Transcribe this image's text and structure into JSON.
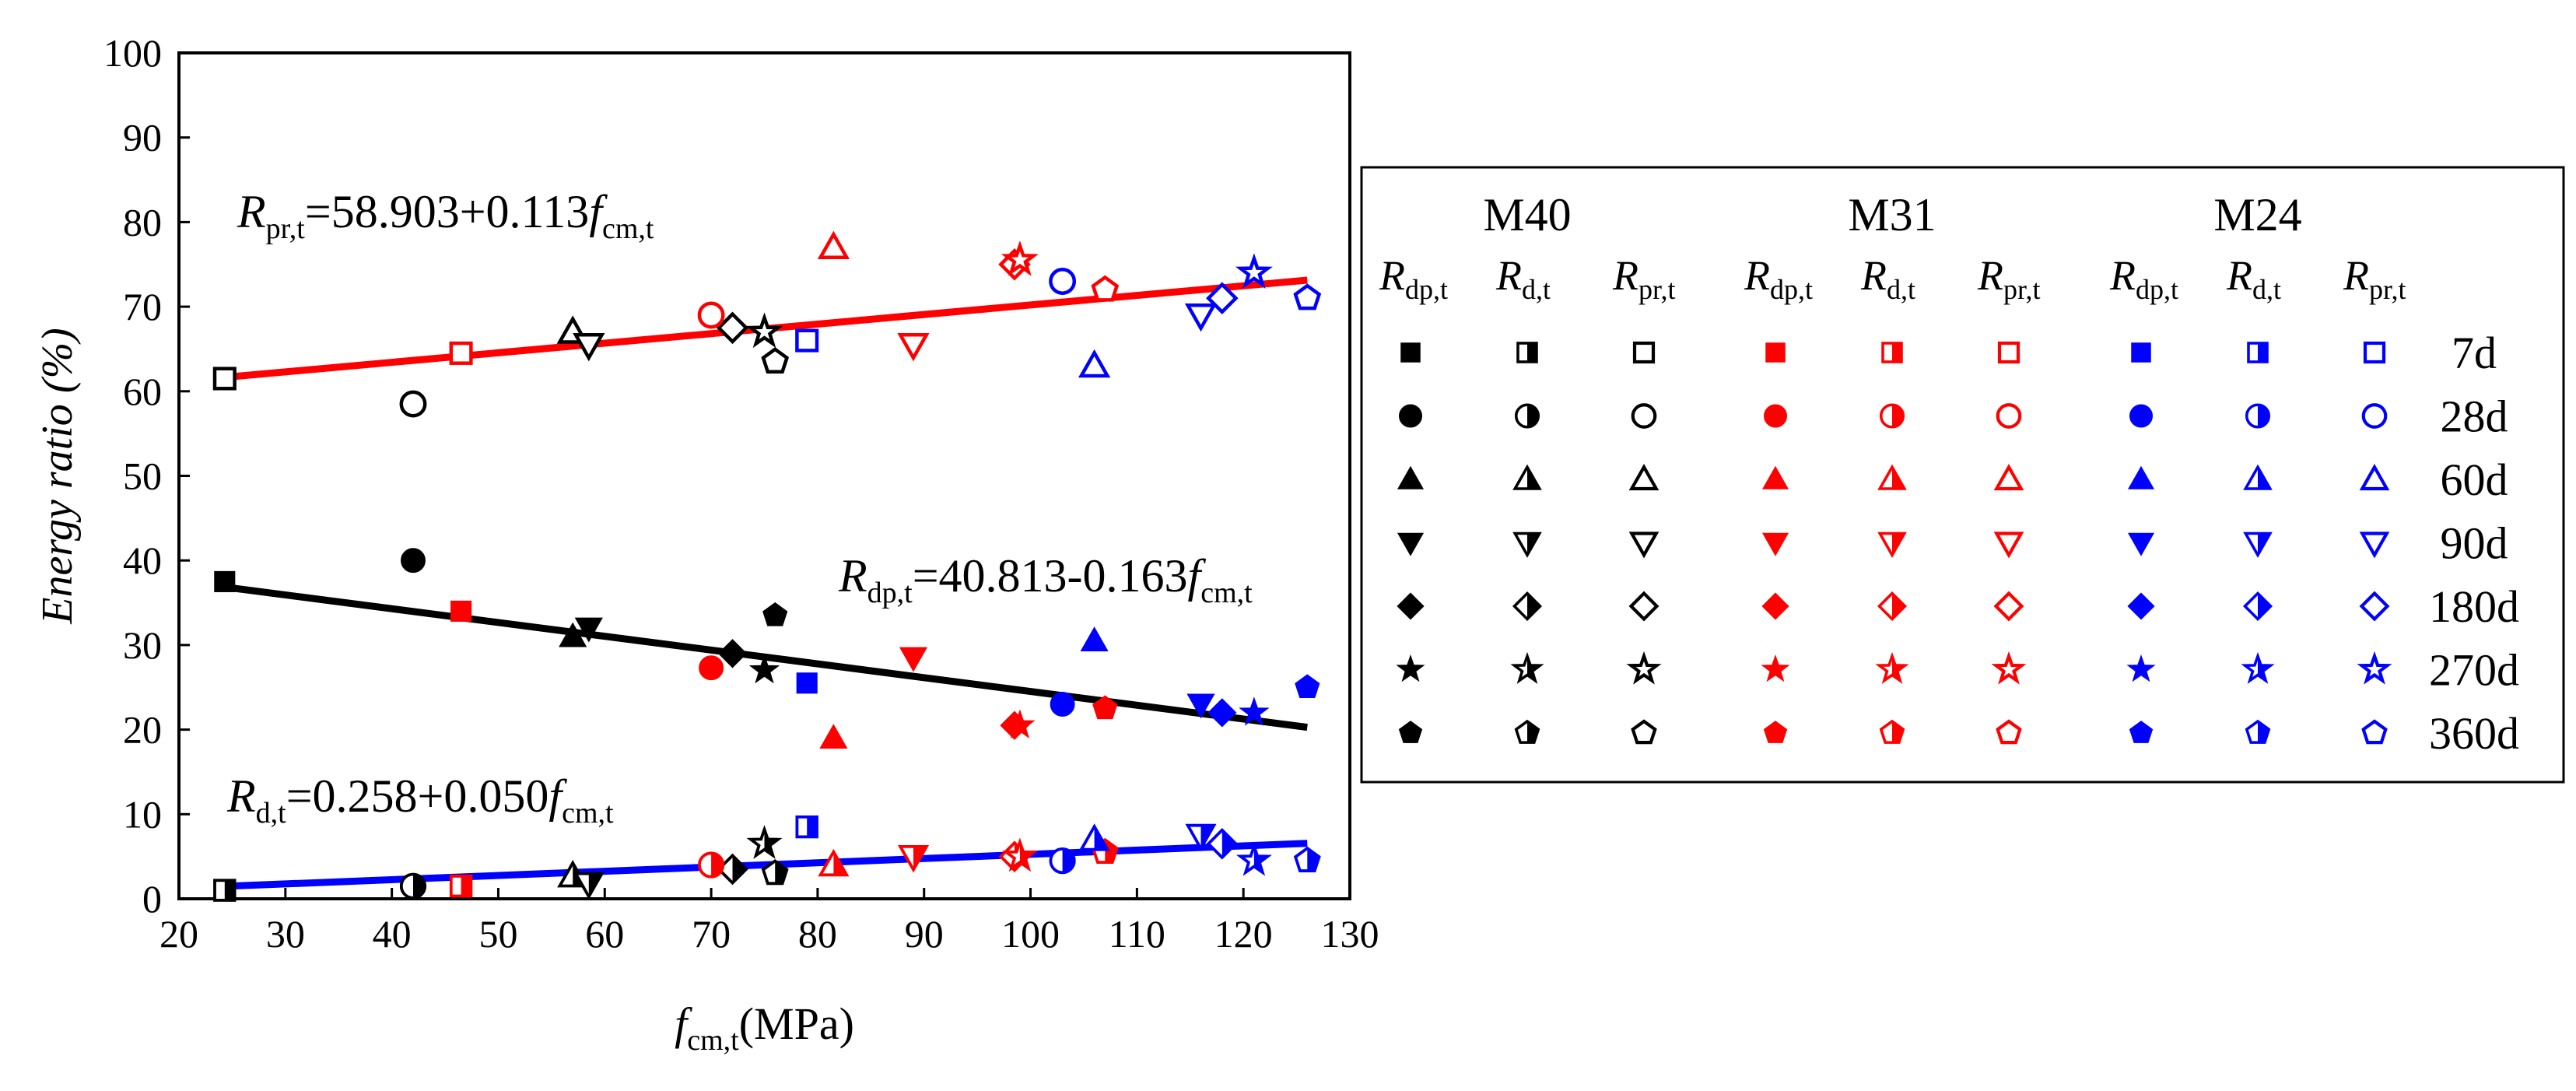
{
  "chart_data": {
    "type": "scatter",
    "x_axis": {
      "range": [
        20,
        130
      ],
      "ticks": [
        "20",
        "30",
        "40",
        "50",
        "60",
        "70",
        "80",
        "90",
        "100",
        "110",
        "120",
        "130"
      ],
      "label_main": "f",
      "label_sub": "cm,t",
      "label_unit": "(MPa)"
    },
    "y_axis": {
      "range": [
        0,
        100
      ],
      "ticks": [
        "0",
        "10",
        "20",
        "30",
        "40",
        "50",
        "60",
        "70",
        "80",
        "90",
        "100"
      ],
      "label": "Energy ratio (%)"
    },
    "colors": {
      "M40": "#000000",
      "M31": "#ff0000",
      "M24": "#0000ff"
    },
    "fits": [
      {
        "series": "pr",
        "color": "#ff0000",
        "intercept": 58.903,
        "slope": 0.113,
        "x_range": [
          24,
          126
        ],
        "eq_main": "R",
        "eq_sub": "pr,t",
        "eq_rest1": "=58.903+0.113",
        "eq_f": "f",
        "eq_fsub": "cm,t"
      },
      {
        "series": "dp",
        "color": "#000000",
        "intercept": 40.813,
        "slope": -0.163,
        "x_range": [
          24,
          126
        ],
        "eq_main": "R",
        "eq_sub": "dp,t",
        "eq_rest1": "=40.813-0.163",
        "eq_f": "f",
        "eq_fsub": "cm,t"
      },
      {
        "series": "d",
        "color": "#0000ff",
        "intercept": 0.258,
        "slope": 0.05,
        "x_range": [
          24,
          126
        ],
        "eq_main": "R",
        "eq_sub": "d,t",
        "eq_rest1": "=0.258+0.050",
        "eq_f": "f",
        "eq_fsub": "cm,t"
      }
    ],
    "points": [
      {
        "g": "M40",
        "age": "7d",
        "x": 24.3,
        "dp": 37.5,
        "pr": 61.5,
        "d": 1.0
      },
      {
        "g": "M40",
        "age": "28d",
        "x": 42.0,
        "dp": 40.0,
        "pr": 58.5,
        "d": 1.5
      },
      {
        "g": "M40",
        "age": "60d",
        "x": 57.0,
        "dp": 31.0,
        "pr": 67.0,
        "d": 2.7
      },
      {
        "g": "M40",
        "age": "90d",
        "x": 58.5,
        "dp": 32.0,
        "pr": 65.5,
        "d": 1.8
      },
      {
        "g": "M40",
        "age": "180d",
        "x": 72.0,
        "dp": 29.0,
        "pr": 67.5,
        "d": 3.5
      },
      {
        "g": "M40",
        "age": "270d",
        "x": 75.0,
        "dp": 27.0,
        "pr": 67.0,
        "d": 6.5
      },
      {
        "g": "M40",
        "age": "360d",
        "x": 76.0,
        "dp": 33.5,
        "pr": 63.5,
        "d": 3.0
      },
      {
        "g": "M31",
        "age": "7d",
        "x": 46.5,
        "dp": 34.0,
        "pr": 64.5,
        "d": 1.5
      },
      {
        "g": "M31",
        "age": "28d",
        "x": 70.0,
        "dp": 27.3,
        "pr": 69.0,
        "d": 4.0
      },
      {
        "g": "M31",
        "age": "60d",
        "x": 81.5,
        "dp": 19.0,
        "pr": 77.0,
        "d": 4.0
      },
      {
        "g": "M31",
        "age": "90d",
        "x": 89.0,
        "dp": 28.5,
        "pr": 65.5,
        "d": 5.0
      },
      {
        "g": "M31",
        "age": "180d",
        "x": 98.5,
        "dp": 20.5,
        "pr": 75.0,
        "d": 5.0
      },
      {
        "g": "M31",
        "age": "270d",
        "x": 99.0,
        "dp": 20.5,
        "pr": 75.5,
        "d": 5.0
      },
      {
        "g": "M31",
        "age": "360d",
        "x": 107.0,
        "dp": 22.5,
        "pr": 72.0,
        "d": 5.5
      },
      {
        "g": "M24",
        "age": "7d",
        "x": 79.0,
        "dp": 25.5,
        "pr": 66.0,
        "d": 8.5
      },
      {
        "g": "M24",
        "age": "28d",
        "x": 103.0,
        "dp": 23.0,
        "pr": 73.0,
        "d": 4.5
      },
      {
        "g": "M24",
        "age": "60d",
        "x": 106.0,
        "dp": 30.5,
        "pr": 63.0,
        "d": 7.0
      },
      {
        "g": "M24",
        "age": "90d",
        "x": 116.0,
        "dp": 23.0,
        "pr": 69.0,
        "d": 7.5
      },
      {
        "g": "M24",
        "age": "180d",
        "x": 118.0,
        "dp": 22.0,
        "pr": 71.0,
        "d": 6.5
      },
      {
        "g": "M24",
        "age": "270d",
        "x": 121.0,
        "dp": 22.0,
        "pr": 74.0,
        "d": 4.5
      },
      {
        "g": "M24",
        "age": "360d",
        "x": 126.0,
        "dp": 25.0,
        "pr": 71.0,
        "d": 4.5
      }
    ],
    "legend": {
      "groups": [
        "M40",
        "M31",
        "M24"
      ],
      "columns": [
        {
          "g": "M40",
          "type": "dp",
          "main": "R",
          "sub": "dp,t"
        },
        {
          "g": "M40",
          "type": "d",
          "main": "R",
          "sub": "d,t"
        },
        {
          "g": "M40",
          "type": "pr",
          "main": "R",
          "sub": "pr,t"
        },
        {
          "g": "M31",
          "type": "dp",
          "main": "R",
          "sub": "dp,t"
        },
        {
          "g": "M31",
          "type": "d",
          "main": "R",
          "sub": "d,t"
        },
        {
          "g": "M31",
          "type": "pr",
          "main": "R",
          "sub": "pr,t"
        },
        {
          "g": "M24",
          "type": "dp",
          "main": "R",
          "sub": "dp,t"
        },
        {
          "g": "M24",
          "type": "d",
          "main": "R",
          "sub": "d,t"
        },
        {
          "g": "M24",
          "type": "pr",
          "main": "R",
          "sub": "pr,t"
        }
      ],
      "rows": [
        {
          "age": "7d",
          "shape": "square"
        },
        {
          "age": "28d",
          "shape": "circle"
        },
        {
          "age": "60d",
          "shape": "triangle-up"
        },
        {
          "age": "90d",
          "shape": "triangle-down"
        },
        {
          "age": "180d",
          "shape": "diamond"
        },
        {
          "age": "270d",
          "shape": "star"
        },
        {
          "age": "360d",
          "shape": "pentagon"
        }
      ]
    }
  }
}
